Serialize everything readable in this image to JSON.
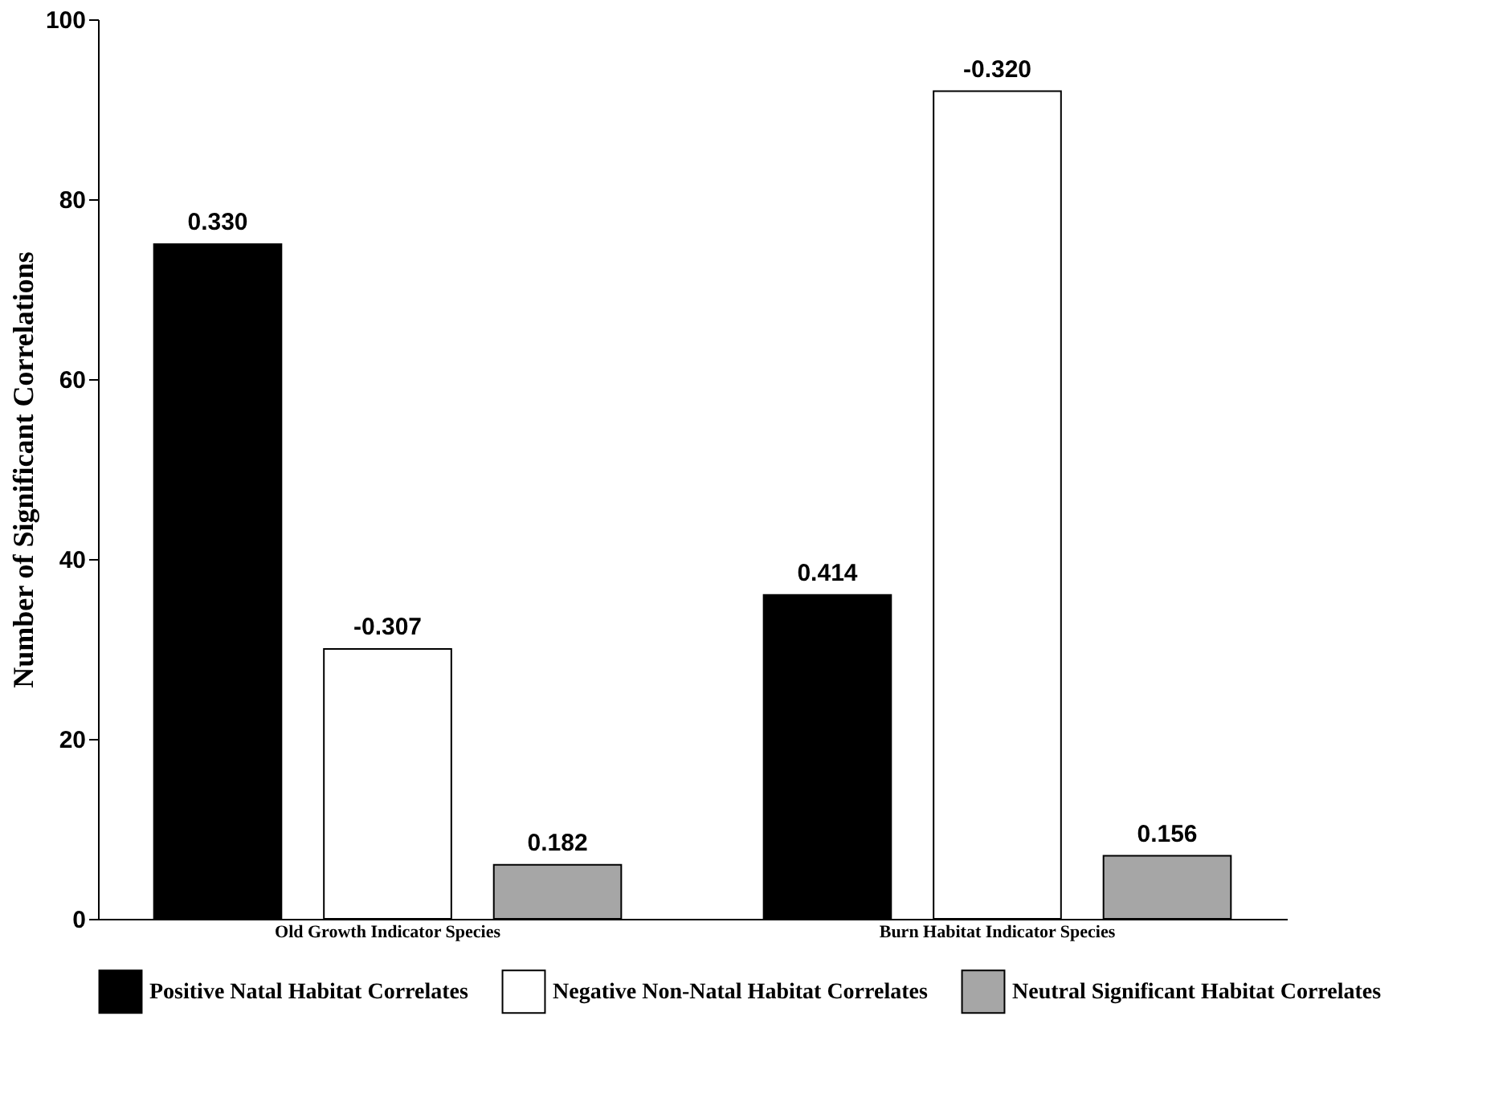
{
  "chart_data": {
    "type": "bar",
    "ylabel": "Number of Significant  Correlations",
    "categories": [
      "Old Growth  Indicator   Species",
      "Burn Habitat  Indicator   Species"
    ],
    "series": [
      {
        "name": "Positive Natal Habitat Correlates",
        "color": "#000000",
        "values": [
          75,
          36
        ]
      },
      {
        "name": "Negative Non-Natal Habitat Correlates",
        "color": "#ffffff",
        "values": [
          30,
          92
        ]
      },
      {
        "name": "Neutral Significant Habitat Correlates",
        "color": "#a6a6a6",
        "values": [
          6,
          7
        ]
      }
    ],
    "annotations": [
      "0.330",
      "-0.307",
      "0.182",
      "0.414",
      "-0.320",
      "0.156"
    ],
    "ylim": [
      0,
      100
    ],
    "yticks": [
      0,
      20,
      40,
      60,
      80,
      100
    ],
    "grid": false,
    "legend": "bottom"
  }
}
